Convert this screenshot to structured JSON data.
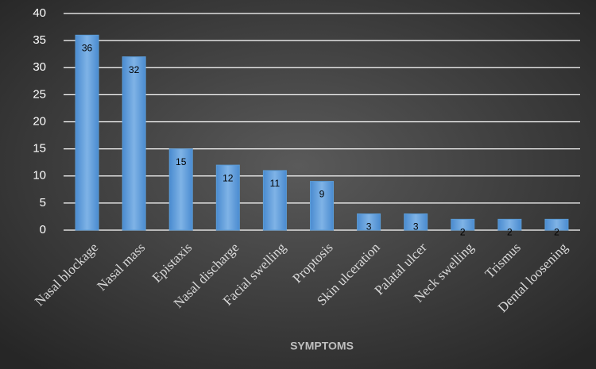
{
  "chart_data": {
    "type": "bar",
    "x_label": "SYMPTOMS",
    "categories": [
      "Nasal blockage",
      "Nasal mass",
      "Epistaxis",
      "Nasal discharge",
      "Facial swelling",
      "Proptosis",
      "Skin ulceration",
      "Palatal ulcer",
      "Neck swelling",
      "Trismus",
      "Dental loosening"
    ],
    "values": [
      36,
      32,
      15,
      12,
      11,
      9,
      3,
      3,
      2,
      2,
      2
    ],
    "color": "#5b9bd5",
    "ylim": [
      0,
      40
    ],
    "yticks": [
      0,
      5,
      10,
      15,
      20,
      25,
      30,
      35,
      40
    ],
    "grid": true
  }
}
